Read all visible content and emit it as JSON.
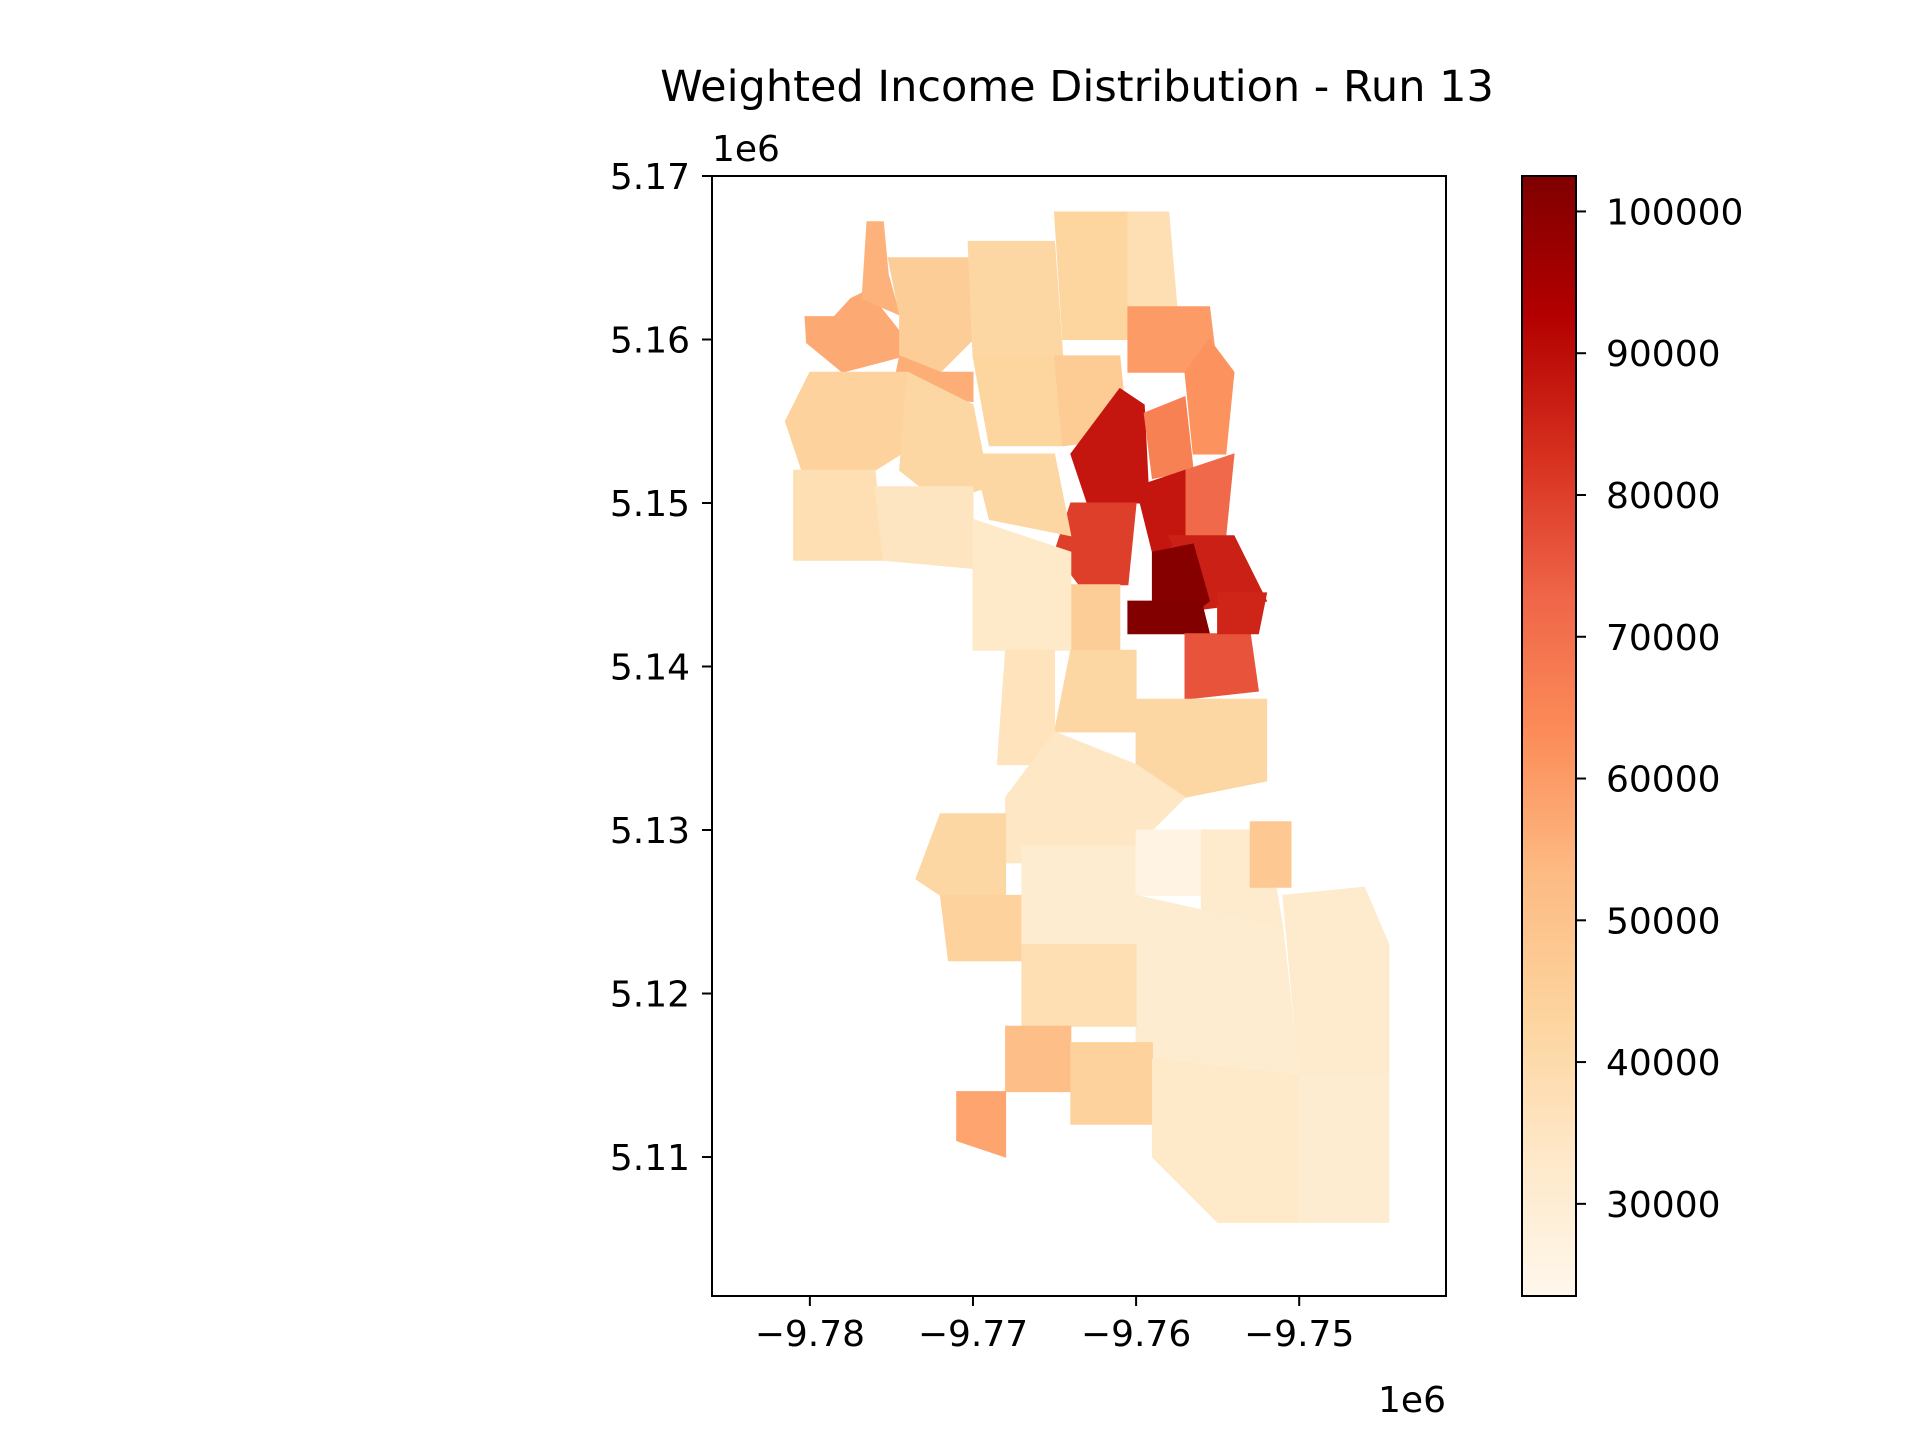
{
  "chart_data": {
    "type": "heatmap",
    "title": "Weighted Income Distribution - Run 13",
    "xlabel": "",
    "ylabel": "",
    "x_offset_label": "1e6",
    "y_offset_label": "1e6",
    "xlim": [
      -9.786,
      -9.741
    ],
    "ylim": [
      5.1015,
      5.17
    ],
    "x_ticks": [
      -9.78,
      -9.77,
      -9.76,
      -9.75
    ],
    "x_tick_labels": [
      "−9.78",
      "−9.77",
      "−9.76",
      "−9.75"
    ],
    "y_ticks": [
      5.17,
      5.16,
      5.15,
      5.14,
      5.13,
      5.12,
      5.11
    ],
    "y_tick_labels": [
      "5.17",
      "5.16",
      "5.15",
      "5.14",
      "5.13",
      "5.12",
      "5.11"
    ],
    "grid": false,
    "colormap": "OrRd",
    "colorbar": {
      "vmin": 23500,
      "vmax": 102500,
      "ticks": [
        30000,
        40000,
        50000,
        60000,
        70000,
        80000,
        90000,
        100000
      ],
      "tick_labels": [
        "30000",
        "40000",
        "50000",
        "60000",
        "70000",
        "80000",
        "90000",
        "100000"
      ],
      "stops": [
        "#fff7ec",
        "#fee8c8",
        "#fdd49e",
        "#fdbb84",
        "#fc8d59",
        "#ef6548",
        "#d7301f",
        "#b30000",
        "#7f0000"
      ]
    },
    "regions": [
      {
        "points": [
          [
            -9.7803,
            5.1614
          ],
          [
            -9.7785,
            5.1614
          ],
          [
            -9.7775,
            5.1625
          ],
          [
            -9.7765,
            5.163
          ],
          [
            -9.7745,
            5.1605
          ],
          [
            -9.7742,
            5.159
          ],
          [
            -9.778,
            5.158
          ],
          [
            -9.7802,
            5.1598
          ]
        ],
        "value": 57000
      },
      {
        "points": [
          [
            -9.7768,
            5.1625
          ],
          [
            -9.7765,
            5.1672
          ],
          [
            -9.7755,
            5.1672
          ],
          [
            -9.7752,
            5.164
          ],
          [
            -9.7745,
            5.1615
          ]
        ],
        "value": 55000
      },
      {
        "points": [
          [
            -9.7752,
            5.165
          ],
          [
            -9.7703,
            5.165
          ],
          [
            -9.77,
            5.16
          ],
          [
            -9.772,
            5.158
          ],
          [
            -9.7745,
            5.159
          ],
          [
            -9.7745,
            5.1615
          ]
        ],
        "value": 46000
      },
      {
        "points": [
          [
            -9.7745,
            5.159
          ],
          [
            -9.772,
            5.158
          ],
          [
            -9.77,
            5.158
          ],
          [
            -9.77,
            5.1562
          ],
          [
            -9.7735,
            5.1565
          ],
          [
            -9.7748,
            5.1575
          ]
        ],
        "value": 56000
      },
      {
        "points": [
          [
            -9.7703,
            5.166
          ],
          [
            -9.765,
            5.166
          ],
          [
            -9.7645,
            5.159
          ],
          [
            -9.77,
            5.159
          ]
        ],
        "value": 42000
      },
      {
        "points": [
          [
            -9.765,
            5.1678
          ],
          [
            -9.7605,
            5.1678
          ],
          [
            -9.7605,
            5.16
          ],
          [
            -9.7645,
            5.16
          ]
        ],
        "value": 43000
      },
      {
        "points": [
          [
            -9.7605,
            5.1678
          ],
          [
            -9.758,
            5.1678
          ],
          [
            -9.7575,
            5.162
          ],
          [
            -9.7605,
            5.162
          ]
        ],
        "value": 38000
      },
      {
        "points": [
          [
            -9.7605,
            5.162
          ],
          [
            -9.7555,
            5.162
          ],
          [
            -9.755,
            5.158
          ],
          [
            -9.7605,
            5.158
          ]
        ],
        "value": 60000
      },
      {
        "points": [
          [
            -9.7555,
            5.16
          ],
          [
            -9.754,
            5.158
          ],
          [
            -9.7545,
            5.153
          ],
          [
            -9.7565,
            5.153
          ],
          [
            -9.757,
            5.158
          ]
        ],
        "value": 62000
      },
      {
        "points": [
          [
            -9.78,
            5.158
          ],
          [
            -9.774,
            5.158
          ],
          [
            -9.772,
            5.1545
          ],
          [
            -9.776,
            5.152
          ],
          [
            -9.7805,
            5.152
          ],
          [
            -9.7815,
            5.155
          ]
        ],
        "value": 44000
      },
      {
        "points": [
          [
            -9.774,
            5.158
          ],
          [
            -9.77,
            5.156
          ],
          [
            -9.769,
            5.151
          ],
          [
            -9.772,
            5.15
          ],
          [
            -9.7745,
            5.152
          ]
        ],
        "value": 42000
      },
      {
        "points": [
          [
            -9.77,
            5.159
          ],
          [
            -9.765,
            5.159
          ],
          [
            -9.7645,
            5.1535
          ],
          [
            -9.769,
            5.1535
          ]
        ],
        "value": 43000
      },
      {
        "points": [
          [
            -9.765,
            5.159
          ],
          [
            -9.761,
            5.159
          ],
          [
            -9.7605,
            5.154
          ],
          [
            -9.7645,
            5.1535
          ]
        ],
        "value": 47000
      },
      {
        "points": [
          [
            -9.761,
            5.157
          ],
          [
            -9.7595,
            5.156
          ],
          [
            -9.7592,
            5.15
          ],
          [
            -9.763,
            5.15
          ],
          [
            -9.764,
            5.153
          ]
        ],
        "value": 88000
      },
      {
        "points": [
          [
            -9.7595,
            5.1555
          ],
          [
            -9.757,
            5.1565
          ],
          [
            -9.7565,
            5.152
          ],
          [
            -9.759,
            5.1515
          ]
        ],
        "value": 66000
      },
      {
        "points": [
          [
            -9.757,
            5.152
          ],
          [
            -9.754,
            5.153
          ],
          [
            -9.7545,
            5.148
          ],
          [
            -9.757,
            5.148
          ]
        ],
        "value": 72000
      },
      {
        "points": [
          [
            -9.76,
            5.151
          ],
          [
            -9.757,
            5.152
          ],
          [
            -9.757,
            5.1475
          ],
          [
            -9.759,
            5.147
          ]
        ],
        "value": 88000
      },
      {
        "points": [
          [
            -9.764,
            5.15
          ],
          [
            -9.76,
            5.15
          ],
          [
            -9.7605,
            5.145
          ],
          [
            -9.7635,
            5.145
          ],
          [
            -9.765,
            5.147
          ]
        ],
        "value": 80000
      },
      {
        "points": [
          [
            -9.758,
            5.148
          ],
          [
            -9.754,
            5.148
          ],
          [
            -9.752,
            5.144
          ],
          [
            -9.756,
            5.1435
          ]
        ],
        "value": 86000
      },
      {
        "points": [
          [
            -9.759,
            5.147
          ],
          [
            -9.7565,
            5.1475
          ],
          [
            -9.7555,
            5.144
          ],
          [
            -9.7575,
            5.1425
          ],
          [
            -9.759,
            5.144
          ]
        ],
        "value": 101000
      },
      {
        "points": [
          [
            -9.7605,
            5.144
          ],
          [
            -9.756,
            5.144
          ],
          [
            -9.7555,
            5.142
          ],
          [
            -9.7605,
            5.142
          ]
        ],
        "value": 102000
      },
      {
        "points": [
          [
            -9.757,
            5.142
          ],
          [
            -9.753,
            5.142
          ],
          [
            -9.7525,
            5.1385
          ],
          [
            -9.757,
            5.138
          ]
        ],
        "value": 76000
      },
      {
        "points": [
          [
            -9.755,
            5.1445
          ],
          [
            -9.752,
            5.1445
          ],
          [
            -9.7525,
            5.142
          ],
          [
            -9.755,
            5.142
          ]
        ],
        "value": 85000
      },
      {
        "points": [
          [
            -9.764,
            5.145
          ],
          [
            -9.761,
            5.145
          ],
          [
            -9.761,
            5.14
          ],
          [
            -9.764,
            5.14
          ]
        ],
        "value": 46000
      },
      {
        "points": [
          [
            -9.77,
            5.153
          ],
          [
            -9.765,
            5.153
          ],
          [
            -9.764,
            5.148
          ],
          [
            -9.769,
            5.149
          ]
        ],
        "value": 42000
      },
      {
        "points": [
          [
            -9.781,
            5.152
          ],
          [
            -9.776,
            5.152
          ],
          [
            -9.7755,
            5.1465
          ],
          [
            -9.781,
            5.1465
          ]
        ],
        "value": 38000
      },
      {
        "points": [
          [
            -9.776,
            5.151
          ],
          [
            -9.77,
            5.151
          ],
          [
            -9.77,
            5.146
          ],
          [
            -9.7755,
            5.1465
          ]
        ],
        "value": 35000
      },
      {
        "points": [
          [
            -9.77,
            5.149
          ],
          [
            -9.764,
            5.147
          ],
          [
            -9.764,
            5.141
          ],
          [
            -9.77,
            5.141
          ]
        ],
        "value": 33000
      },
      {
        "points": [
          [
            -9.764,
            5.141
          ],
          [
            -9.76,
            5.141
          ],
          [
            -9.76,
            5.136
          ],
          [
            -9.765,
            5.136
          ]
        ],
        "value": 42000
      },
      {
        "points": [
          [
            -9.76,
            5.138
          ],
          [
            -9.752,
            5.138
          ],
          [
            -9.752,
            5.133
          ],
          [
            -9.757,
            5.132
          ],
          [
            -9.76,
            5.134
          ]
        ],
        "value": 42000
      },
      {
        "points": [
          [
            -9.768,
            5.141
          ],
          [
            -9.765,
            5.141
          ],
          [
            -9.765,
            5.134
          ],
          [
            -9.7685,
            5.134
          ]
        ],
        "value": 36000
      },
      {
        "points": [
          [
            -9.765,
            5.136
          ],
          [
            -9.76,
            5.134
          ],
          [
            -9.757,
            5.132
          ],
          [
            -9.761,
            5.128
          ],
          [
            -9.768,
            5.128
          ],
          [
            -9.768,
            5.132
          ]
        ],
        "value": 34000
      },
      {
        "points": [
          [
            -9.772,
            5.131
          ],
          [
            -9.768,
            5.131
          ],
          [
            -9.768,
            5.126
          ],
          [
            -9.772,
            5.126
          ],
          [
            -9.7735,
            5.127
          ]
        ],
        "value": 42000
      },
      {
        "points": [
          [
            -9.772,
            5.126
          ],
          [
            -9.767,
            5.126
          ],
          [
            -9.767,
            5.122
          ],
          [
            -9.7715,
            5.122
          ]
        ],
        "value": 44000
      },
      {
        "points": [
          [
            -9.767,
            5.129
          ],
          [
            -9.76,
            5.129
          ],
          [
            -9.76,
            5.123
          ],
          [
            -9.767,
            5.123
          ]
        ],
        "value": 31000
      },
      {
        "points": [
          [
            -9.76,
            5.13
          ],
          [
            -9.756,
            5.13
          ],
          [
            -9.7555,
            5.126
          ],
          [
            -9.76,
            5.126
          ]
        ],
        "value": 26000
      },
      {
        "points": [
          [
            -9.756,
            5.13
          ],
          [
            -9.752,
            5.13
          ],
          [
            -9.751,
            5.124
          ],
          [
            -9.756,
            5.125
          ]
        ],
        "value": 32000
      },
      {
        "points": [
          [
            -9.753,
            5.1305
          ],
          [
            -9.7505,
            5.1305
          ],
          [
            -9.7505,
            5.1265
          ],
          [
            -9.753,
            5.1265
          ]
        ],
        "value": 48000
      },
      {
        "points": [
          [
            -9.751,
            5.126
          ],
          [
            -9.746,
            5.1265
          ],
          [
            -9.7445,
            5.123
          ],
          [
            -9.7445,
            5.115
          ],
          [
            -9.75,
            5.115
          ]
        ],
        "value": 32000
      },
      {
        "points": [
          [
            -9.76,
            5.126
          ],
          [
            -9.751,
            5.124
          ],
          [
            -9.75,
            5.115
          ],
          [
            -9.76,
            5.115
          ]
        ],
        "value": 31000
      },
      {
        "points": [
          [
            -9.767,
            5.123
          ],
          [
            -9.76,
            5.123
          ],
          [
            -9.76,
            5.118
          ],
          [
            -9.767,
            5.118
          ]
        ],
        "value": 38000
      },
      {
        "points": [
          [
            -9.768,
            5.118
          ],
          [
            -9.764,
            5.118
          ],
          [
            -9.764,
            5.114
          ],
          [
            -9.768,
            5.114
          ]
        ],
        "value": 52000
      },
      {
        "points": [
          [
            -9.764,
            5.117
          ],
          [
            -9.759,
            5.117
          ],
          [
            -9.759,
            5.112
          ],
          [
            -9.764,
            5.112
          ]
        ],
        "value": 44000
      },
      {
        "points": [
          [
            -9.759,
            5.116
          ],
          [
            -9.75,
            5.115
          ],
          [
            -9.75,
            5.106
          ],
          [
            -9.755,
            5.106
          ],
          [
            -9.759,
            5.11
          ]
        ],
        "value": 33000
      },
      {
        "points": [
          [
            -9.75,
            5.115
          ],
          [
            -9.7445,
            5.115
          ],
          [
            -9.7445,
            5.106
          ],
          [
            -9.75,
            5.106
          ]
        ],
        "value": 31000
      },
      {
        "points": [
          [
            -9.771,
            5.114
          ],
          [
            -9.768,
            5.114
          ],
          [
            -9.768,
            5.11
          ],
          [
            -9.771,
            5.111
          ]
        ],
        "value": 58000
      }
    ]
  }
}
